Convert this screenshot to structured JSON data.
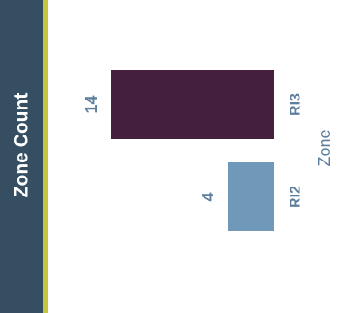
{
  "panel": {
    "title": "Zone Count"
  },
  "colors": {
    "panel_background": "#354e61",
    "panel_accent": "#c3c83b",
    "label_text": "#5d7f9d"
  },
  "chart_data": {
    "type": "bar",
    "orientation": "rotated-horizontal",
    "title": "",
    "xlabel": "Zone",
    "ylabel": "",
    "categories": [
      "RI3",
      "RI2"
    ],
    "values": [
      14,
      4
    ],
    "colors": [
      "#44203e",
      "#6f98b9"
    ],
    "grid": false,
    "legend": "none"
  }
}
